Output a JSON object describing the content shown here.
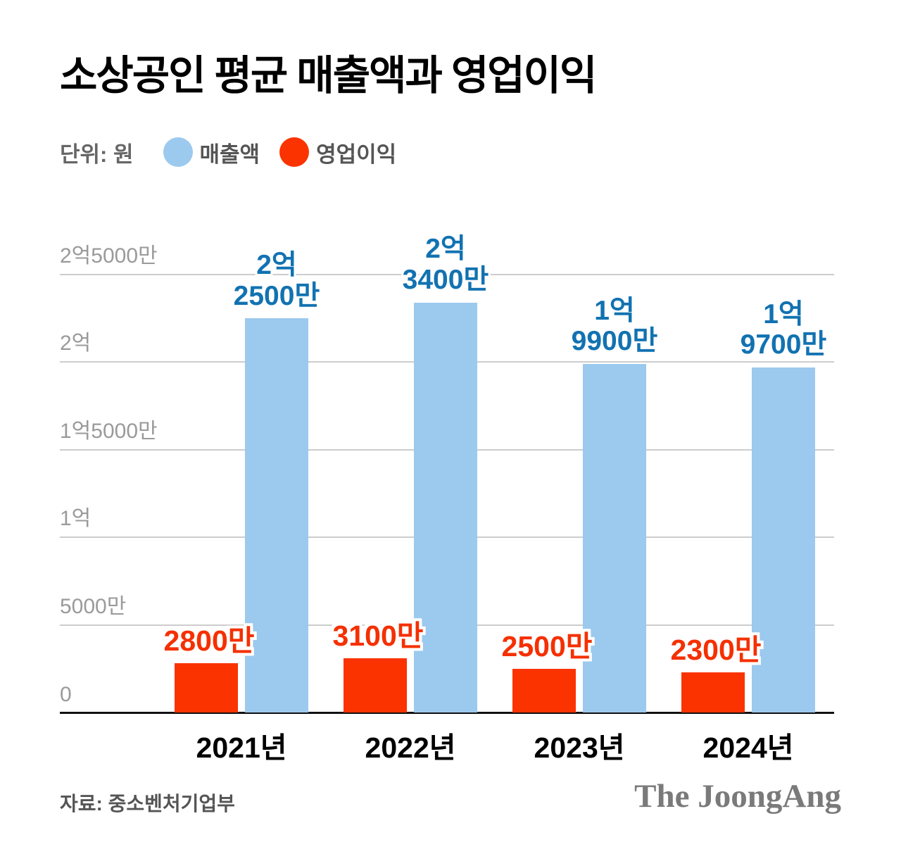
{
  "header": {
    "title": "소상공인 평균 매출액과 영업이익"
  },
  "legend": {
    "unit_label": "단위: 원",
    "items": [
      {
        "name": "매출액",
        "color": "#9cc9ee"
      },
      {
        "name": "영업이익",
        "color": "#fa3300"
      }
    ]
  },
  "footer": {
    "source": "자료: 중소벤처기업부",
    "logo": "The JoongAng"
  },
  "chart_data": {
    "type": "bar",
    "title": "소상공인 평균 매출액과 영업이익",
    "unit": "원",
    "categories": [
      "2021년",
      "2022년",
      "2023년",
      "2024년"
    ],
    "series": [
      {
        "name": "매출액",
        "color": "#9cc9ee",
        "label_color": "#1272b1",
        "values": [
          225000000,
          234000000,
          199000000,
          197000000
        ],
        "value_labels": [
          [
            "2억",
            "2500만"
          ],
          [
            "2억",
            "3400만"
          ],
          [
            "1억",
            "9900만"
          ],
          [
            "1억",
            "9700만"
          ]
        ]
      },
      {
        "name": "영업이익",
        "color": "#fa3300",
        "label_color": "#f53000",
        "values": [
          28000000,
          31000000,
          25000000,
          23000000
        ],
        "value_labels": [
          [
            "2800만"
          ],
          [
            "3100만"
          ],
          [
            "2500만"
          ],
          [
            "2300만"
          ]
        ]
      }
    ],
    "yticks": [
      {
        "value": 0,
        "label": "0"
      },
      {
        "value": 50000000,
        "label": "5000만"
      },
      {
        "value": 100000000,
        "label": "1억"
      },
      {
        "value": 150000000,
        "label": "1억5000만"
      },
      {
        "value": 200000000,
        "label": "2억"
      },
      {
        "value": 250000000,
        "label": "2억5000만"
      }
    ],
    "ylim": [
      0,
      250000000
    ],
    "grid": true,
    "legend_position": "top"
  }
}
